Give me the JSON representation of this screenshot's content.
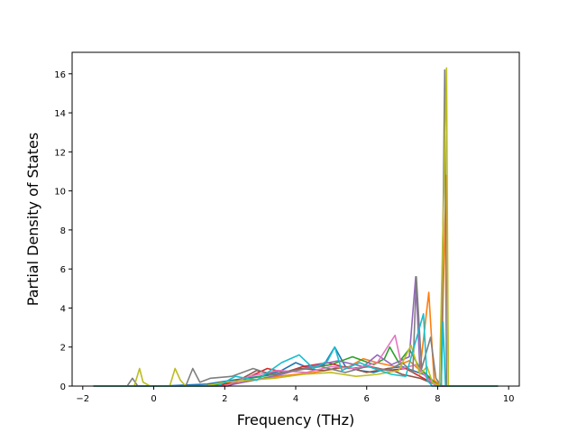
{
  "chart_data": {
    "type": "line",
    "title": "",
    "xlabel": "Frequency (THz)",
    "ylabel": "Partial Density of States",
    "xlim": [
      -2.3,
      10.3
    ],
    "ylim": [
      0,
      17.1
    ],
    "xticks": [
      -2,
      0,
      2,
      4,
      6,
      8,
      10
    ],
    "yticks": [
      0,
      2,
      4,
      6,
      8,
      10,
      12,
      14,
      16
    ],
    "grid": false,
    "legend": "none",
    "colors": [
      "#1f77b4",
      "#ff7f0e",
      "#2ca02c",
      "#d62728",
      "#9467bd",
      "#8c564b",
      "#e377c2",
      "#7f7f7f",
      "#bcbd22",
      "#17becf"
    ],
    "series": [
      {
        "points": [
          [
            -1.7,
            0
          ],
          [
            -0.4,
            0
          ],
          [
            0.2,
            0
          ],
          [
            1.5,
            0.1
          ],
          [
            2.2,
            0.3
          ],
          [
            3.0,
            0.5
          ],
          [
            3.6,
            0.8
          ],
          [
            4.0,
            1.2
          ],
          [
            4.4,
            0.9
          ],
          [
            4.8,
            1.1
          ],
          [
            5.1,
            2.0
          ],
          [
            5.4,
            1.0
          ],
          [
            5.8,
            0.8
          ],
          [
            6.2,
            0.7
          ],
          [
            6.6,
            0.9
          ],
          [
            7.0,
            1.0
          ],
          [
            7.3,
            0.8
          ],
          [
            7.6,
            0.6
          ],
          [
            7.9,
            0.2
          ],
          [
            8.15,
            0
          ],
          [
            9.7,
            0
          ]
        ]
      },
      {
        "points": [
          [
            -1.7,
            0
          ],
          [
            1.5,
            0
          ],
          [
            2.5,
            0.2
          ],
          [
            3.5,
            0.5
          ],
          [
            4.5,
            0.7
          ],
          [
            5.5,
            1.0
          ],
          [
            5.9,
            1.4
          ],
          [
            6.3,
            1.2
          ],
          [
            6.8,
            1.0
          ],
          [
            7.2,
            1.3
          ],
          [
            7.5,
            0.8
          ],
          [
            7.75,
            4.8
          ],
          [
            7.9,
            0.3
          ],
          [
            8.1,
            0
          ],
          [
            8.2,
            8.0
          ],
          [
            8.25,
            10.8
          ],
          [
            8.3,
            0
          ],
          [
            9.7,
            0
          ]
        ]
      },
      {
        "points": [
          [
            -1.7,
            0
          ],
          [
            1.6,
            0
          ],
          [
            2.4,
            0.3
          ],
          [
            3.4,
            0.6
          ],
          [
            4.3,
            0.9
          ],
          [
            5.0,
            1.1
          ],
          [
            5.6,
            1.5
          ],
          [
            6.2,
            1.1
          ],
          [
            6.5,
            1.4
          ],
          [
            6.65,
            2.0
          ],
          [
            6.9,
            1.2
          ],
          [
            7.2,
            1.9
          ],
          [
            7.5,
            0.9
          ],
          [
            7.8,
            0.4
          ],
          [
            8.0,
            0
          ],
          [
            9.7,
            0
          ]
        ]
      },
      {
        "points": [
          [
            -1.7,
            0
          ],
          [
            1.8,
            0
          ],
          [
            2.6,
            0.4
          ],
          [
            3.2,
            0.9
          ],
          [
            3.7,
            0.7
          ],
          [
            4.2,
            1.0
          ],
          [
            4.9,
            1.2
          ],
          [
            5.5,
            0.9
          ],
          [
            6.1,
            1.0
          ],
          [
            6.6,
            0.8
          ],
          [
            7.1,
            0.9
          ],
          [
            7.5,
            0.5
          ],
          [
            7.8,
            0.2
          ],
          [
            8.0,
            0
          ],
          [
            9.7,
            0
          ]
        ]
      },
      {
        "points": [
          [
            -1.7,
            0
          ],
          [
            2.0,
            0
          ],
          [
            2.8,
            0.3
          ],
          [
            3.6,
            0.6
          ],
          [
            4.4,
            1.0
          ],
          [
            5.2,
            1.3
          ],
          [
            5.9,
            1.0
          ],
          [
            6.3,
            1.6
          ],
          [
            6.7,
            1.1
          ],
          [
            7.2,
            1.5
          ],
          [
            7.38,
            5.6
          ],
          [
            7.5,
            0.8
          ],
          [
            7.8,
            0.3
          ],
          [
            8.0,
            0
          ],
          [
            9.7,
            0
          ]
        ]
      },
      {
        "points": [
          [
            -1.7,
            0
          ],
          [
            2.1,
            0
          ],
          [
            2.9,
            0.8
          ],
          [
            3.4,
            0.6
          ],
          [
            4.1,
            0.9
          ],
          [
            4.8,
            0.8
          ],
          [
            5.4,
            1.0
          ],
          [
            6.0,
            0.7
          ],
          [
            6.6,
            0.9
          ],
          [
            7.0,
            0.6
          ],
          [
            7.5,
            0.4
          ],
          [
            7.9,
            0.1
          ],
          [
            8.1,
            0
          ],
          [
            9.7,
            0
          ]
        ]
      },
      {
        "points": [
          [
            -1.7,
            0
          ],
          [
            2.0,
            0
          ],
          [
            2.7,
            0.5
          ],
          [
            3.5,
            0.8
          ],
          [
            4.3,
            0.7
          ],
          [
            5.0,
            1.0
          ],
          [
            5.7,
            0.9
          ],
          [
            6.3,
            1.2
          ],
          [
            6.8,
            2.6
          ],
          [
            7.0,
            0.9
          ],
          [
            7.4,
            1.1
          ],
          [
            7.7,
            0.4
          ],
          [
            7.95,
            0
          ],
          [
            9.7,
            0
          ]
        ]
      },
      {
        "points": [
          [
            -1.7,
            0
          ],
          [
            -0.75,
            0
          ],
          [
            -0.6,
            0.4
          ],
          [
            -0.45,
            0
          ],
          [
            0.9,
            0
          ],
          [
            1.1,
            0.9
          ],
          [
            1.3,
            0.2
          ],
          [
            1.6,
            0.4
          ],
          [
            2.2,
            0.5
          ],
          [
            2.8,
            0.9
          ],
          [
            3.3,
            0.6
          ],
          [
            4.0,
            0.8
          ],
          [
            4.7,
            1.0
          ],
          [
            5.4,
            0.7
          ],
          [
            6.0,
            1.0
          ],
          [
            6.6,
            0.8
          ],
          [
            7.0,
            1.2
          ],
          [
            7.3,
            0.7
          ],
          [
            7.4,
            5.6
          ],
          [
            7.55,
            0.9
          ],
          [
            7.8,
            2.5
          ],
          [
            7.95,
            0.4
          ],
          [
            8.1,
            0
          ],
          [
            8.2,
            16.2
          ],
          [
            8.25,
            0
          ],
          [
            9.7,
            0
          ]
        ]
      },
      {
        "points": [
          [
            -1.7,
            0
          ],
          [
            -0.55,
            0
          ],
          [
            -0.4,
            0.9
          ],
          [
            -0.3,
            0.2
          ],
          [
            -0.1,
            0
          ],
          [
            0.45,
            0
          ],
          [
            0.6,
            0.9
          ],
          [
            0.75,
            0.3
          ],
          [
            0.9,
            0
          ],
          [
            1.4,
            0
          ],
          [
            2.0,
            0.2
          ],
          [
            2.6,
            0.3
          ],
          [
            3.4,
            0.4
          ],
          [
            4.2,
            0.6
          ],
          [
            5.0,
            0.7
          ],
          [
            5.7,
            0.5
          ],
          [
            6.3,
            0.6
          ],
          [
            6.9,
            0.8
          ],
          [
            7.25,
            2.1
          ],
          [
            7.5,
            0.6
          ],
          [
            7.7,
            1.0
          ],
          [
            7.85,
            0.2
          ],
          [
            8.05,
            0
          ],
          [
            8.25,
            16.3
          ],
          [
            8.3,
            0
          ],
          [
            9.7,
            0
          ]
        ]
      },
      {
        "points": [
          [
            -1.7,
            0
          ],
          [
            1.8,
            0
          ],
          [
            2.3,
            0.5
          ],
          [
            2.9,
            0.3
          ],
          [
            3.6,
            1.2
          ],
          [
            4.1,
            1.6
          ],
          [
            4.5,
            0.9
          ],
          [
            4.9,
            1.3
          ],
          [
            5.1,
            2.0
          ],
          [
            5.3,
            0.8
          ],
          [
            5.8,
            1.2
          ],
          [
            6.2,
            0.9
          ],
          [
            6.7,
            0.6
          ],
          [
            7.1,
            0.5
          ],
          [
            7.6,
            3.7
          ],
          [
            7.7,
            0.3
          ],
          [
            7.85,
            0
          ],
          [
            8.1,
            0
          ],
          [
            8.15,
            3.3
          ],
          [
            8.22,
            0
          ],
          [
            9.7,
            0
          ]
        ]
      }
    ]
  }
}
